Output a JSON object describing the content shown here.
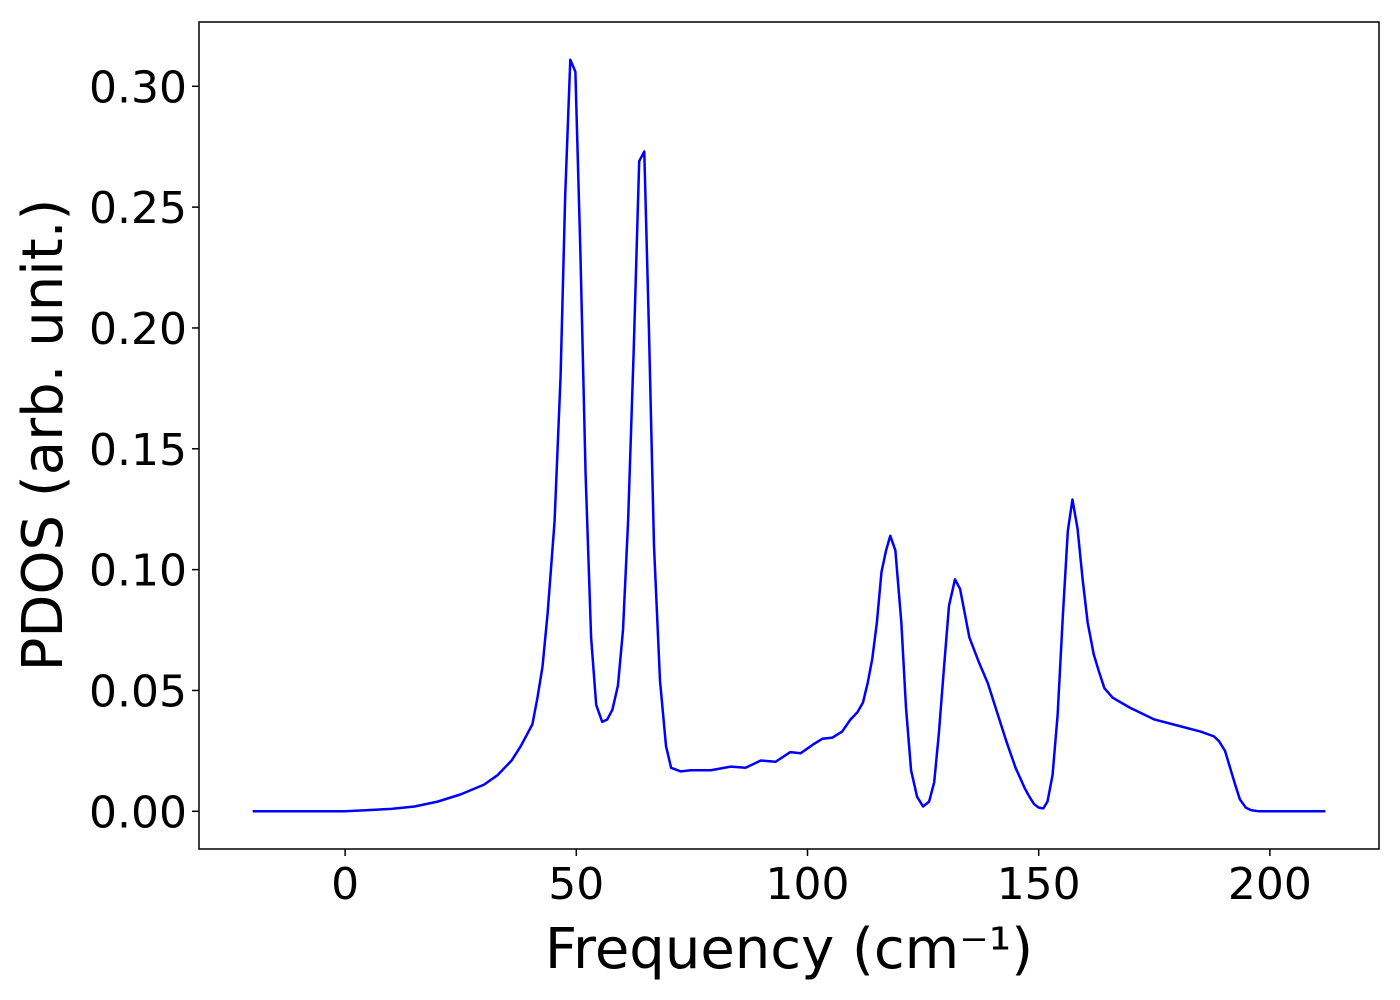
{
  "chart_data": {
    "type": "line",
    "xlabel": "Frequency (cm⁻¹)",
    "ylabel": "PDOS (arb. unit.)",
    "color": "#0000ff",
    "x": [
      -20,
      -10,
      0,
      5,
      10,
      15,
      20,
      25,
      30,
      33,
      36,
      38,
      40.5,
      41.6,
      42.7,
      43.8,
      45.3,
      46.6,
      47.6,
      48.7,
      49.8,
      50.9,
      52,
      53.2,
      54.3,
      55.6,
      56.7,
      57.8,
      59,
      60.1,
      61.2,
      62.4,
      63.6,
      64.7,
      65.7,
      66.8,
      68.1,
      69.4,
      70.5,
      72.6,
      74.8,
      79.1,
      83.4,
      86.6,
      89.9,
      93.1,
      96.3,
      98.5,
      101.1,
      103.2,
      105.4,
      107.5,
      109.3,
      110.8,
      112,
      113,
      114,
      115,
      116,
      117,
      117.9,
      119,
      120.3,
      121.3,
      122.4,
      123.7,
      125,
      126.3,
      127.4,
      128.4,
      129.5,
      130.6,
      131.9,
      133,
      134,
      135,
      137,
      139,
      141,
      143,
      145,
      147,
      148,
      149,
      150,
      151,
      151.9,
      153,
      154.1,
      155.2,
      156.3,
      157.3,
      158.4,
      159.5,
      160.6,
      161.9,
      163,
      164.2,
      166,
      169.6,
      175,
      180,
      185,
      187.9,
      189,
      190.3,
      191.4,
      192.5,
      193.5,
      194.8,
      195.9,
      197.6,
      212
    ],
    "values": [
      0,
      0,
      0,
      0.0005,
      0.001,
      0.002,
      0.004,
      0.007,
      0.011,
      0.015,
      0.021,
      0.027,
      0.036,
      0.047,
      0.06,
      0.082,
      0.12,
      0.18,
      0.255,
      0.311,
      0.306,
      0.23,
      0.14,
      0.072,
      0.044,
      0.037,
      0.038,
      0.042,
      0.052,
      0.075,
      0.12,
      0.19,
      0.269,
      0.273,
      0.2,
      0.11,
      0.054,
      0.027,
      0.018,
      0.0165,
      0.017,
      0.017,
      0.0185,
      0.018,
      0.021,
      0.0205,
      0.0245,
      0.024,
      0.0275,
      0.03,
      0.0305,
      0.033,
      0.038,
      0.041,
      0.045,
      0.053,
      0.063,
      0.078,
      0.099,
      0.108,
      0.114,
      0.108,
      0.078,
      0.043,
      0.017,
      0.006,
      0.002,
      0.004,
      0.012,
      0.032,
      0.059,
      0.085,
      0.096,
      0.092,
      0.082,
      0.072,
      0.062,
      0.053,
      0.041,
      0.029,
      0.018,
      0.0095,
      0.006,
      0.003,
      0.0015,
      0.0012,
      0.004,
      0.015,
      0.04,
      0.08,
      0.116,
      0.129,
      0.117,
      0.096,
      0.078,
      0.065,
      0.058,
      0.051,
      0.047,
      0.043,
      0.038,
      0.0355,
      0.033,
      0.031,
      0.029,
      0.025,
      0.018,
      0.011,
      0.005,
      0.0015,
      0.0005,
      0,
      0
    ],
    "xlim": [
      -31.6,
      223.6
    ],
    "xticks": [
      0,
      50,
      100,
      150,
      200
    ],
    "ylim": [
      -0.0156,
      0.3266
    ],
    "yticks": [
      {
        "value": 0,
        "label": "0.00"
      },
      {
        "value": 0.05,
        "label": "0.05"
      },
      {
        "value": 0.1,
        "label": "0.10"
      },
      {
        "value": 0.15,
        "label": "0.15"
      },
      {
        "value": 0.2,
        "label": "0.20"
      },
      {
        "value": 0.25,
        "label": "0.25"
      },
      {
        "value": 0.3,
        "label": "0.30"
      }
    ],
    "grid": false
  }
}
